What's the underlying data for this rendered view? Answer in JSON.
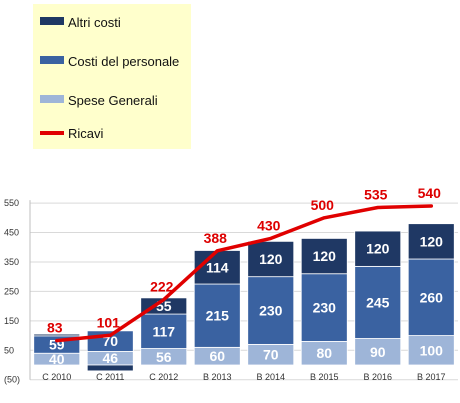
{
  "chart_data": {
    "type": "bar",
    "stacked": true,
    "categories": [
      "C 2010",
      "C 2011",
      "C 2012",
      "B 2013",
      "B 2014",
      "B 2015",
      "B 2016",
      "B 2017"
    ],
    "series": [
      {
        "name": "Spese Generali",
        "type": "bar",
        "color": "#9eb5d8",
        "values": [
          40,
          46,
          56,
          60,
          70,
          80,
          90,
          100
        ]
      },
      {
        "name": "Costi del personale",
        "type": "bar",
        "color": "#3a62a1",
        "values": [
          59,
          70,
          117,
          215,
          230,
          230,
          245,
          260
        ]
      },
      {
        "name": "Altri costi",
        "type": "bar",
        "color": "#1f3864",
        "values": [
          6,
          -20,
          55,
          114,
          120,
          120,
          120,
          120
        ]
      },
      {
        "name": "Ricavi",
        "type": "line",
        "color": "#e00000",
        "values": [
          83,
          101,
          222,
          388,
          430,
          500,
          535,
          540
        ]
      }
    ],
    "hidden_value_labels": [
      [
        0,
        2
      ]
    ],
    "yticks": [
      "(50)",
      "50",
      "150",
      "250",
      "350",
      "450",
      "550"
    ],
    "ytick_values": [
      -50,
      50,
      150,
      250,
      350,
      450,
      550
    ],
    "ylim": [
      -50,
      560
    ],
    "legend_position": "top-left",
    "legend_order": [
      "Altri costi",
      "Costi del personale",
      "Spese Generali",
      "Ricavi"
    ],
    "legend_background": "#ffffcc"
  }
}
